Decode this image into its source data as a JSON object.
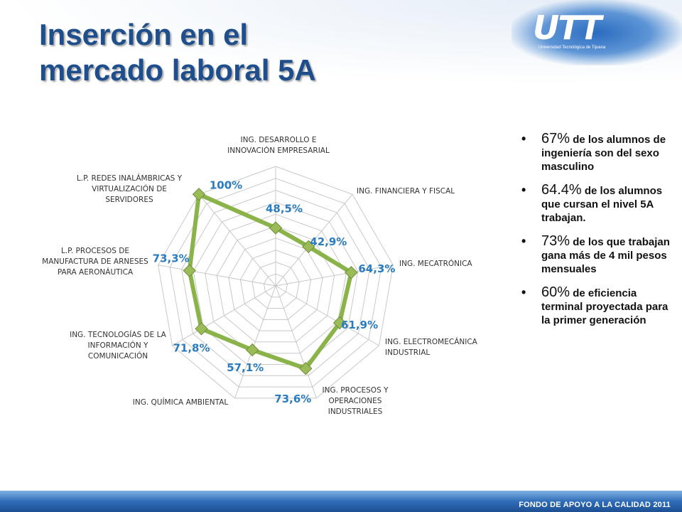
{
  "header": {
    "title_line1": "Inserción en el",
    "title_line2": "mercado laboral 5A",
    "logo_text": "UTT",
    "logo_subtitle": "Universidad Tecnológica de Tijuana"
  },
  "colors": {
    "title": "#1f4e8c",
    "series_line": "#8ab34a",
    "series_marker": "#9bbb59",
    "data_label": "#2b7bbf",
    "grid": "#c8c8c8"
  },
  "chart_data": {
    "type": "radar",
    "categories": [
      "ING. DESARROLLO E INNOVACIÓN EMPRESARIAL",
      "ING. FINANCIERA Y FISCAL",
      "ING. MECATRÓNICA",
      "ING. ELECTROMECÁNICA INDUSTRIAL",
      "ING. PROCESOS Y OPERACIONES INDUSTRIALES",
      "ING. QUÍMICA AMBIENTAL",
      "ING. TECNOLOGÍAS DE LA INFORMACIÓN Y COMUNICACIÓN",
      "L.P. PROCESOS DE MANUFACTURA DE ARNESES PARA AERONÁUTICA",
      "L.P. REDES INALÁMBRICAS Y VIRTUALIZACIÓN DE SERVIDORES"
    ],
    "category_lines": [
      [
        "ING. DESARROLLO E",
        "INNOVACIÓN EMPRESARIAL"
      ],
      [
        "ING. FINANCIERA Y FISCAL"
      ],
      [
        "ING. MECATRÓNICA"
      ],
      [
        "ING. ELECTROMECÁNICA",
        "INDUSTRIAL"
      ],
      [
        "ING. PROCESOS Y",
        "OPERACIONES",
        "INDUSTRIALES"
      ],
      [
        "ING. QUÍMICA AMBIENTAL"
      ],
      [
        "ING. TECNOLOGÍAS DE LA",
        "INFORMACIÓN Y",
        "COMUNICACIÓN"
      ],
      [
        "L.P. PROCESOS DE",
        "MANUFACTURA DE ARNESES",
        "PARA AERONÁUTICA"
      ],
      [
        "L.P. REDES INALÁMBRICAS Y",
        "VIRTUALIZACIÓN DE",
        "SERVIDORES"
      ]
    ],
    "values": [
      48.5,
      42.9,
      64.3,
      61.9,
      73.6,
      57.1,
      71.8,
      73.3,
      100
    ],
    "value_labels": [
      "48,5%",
      "42,9%",
      "64,3%",
      "61,9%",
      "73,6%",
      "57,1%",
      "71,8%",
      "73,3%",
      "100%"
    ],
    "rlim": [
      0,
      100
    ],
    "grid_rings": 10,
    "legend": "none"
  },
  "bullets": [
    {
      "highlight": "67%",
      "text": " de los alumnos de ingeniería son del sexo masculino"
    },
    {
      "highlight": "64.4%",
      "text": " de los alumnos que cursan el nivel 5A trabajan."
    },
    {
      "highlight": "73%",
      "text": " de los que trabajan gana más de 4 mil pesos mensuales"
    },
    {
      "highlight": "60%",
      "text": " de eficiencia terminal proyectada para la primer generación"
    }
  ],
  "footer": {
    "text": "FONDO DE APOYO A LA CALIDAD 2011"
  }
}
